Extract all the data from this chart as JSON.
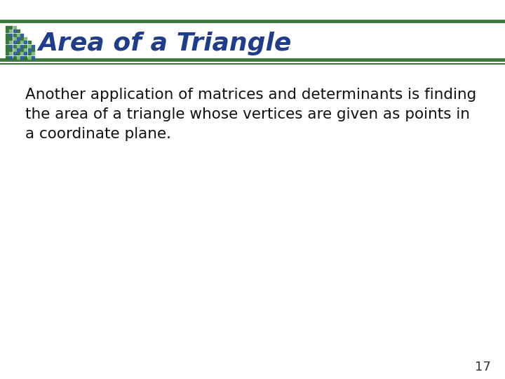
{
  "title": "Area of a Triangle",
  "title_color": "#1F3D8A",
  "title_fontsize": 26,
  "body_text_lines": [
    "Another application of matrices and determinants is finding",
    "the area of a triangle whose vertices are given as points in",
    "a coordinate plane."
  ],
  "body_fontsize": 15.5,
  "body_color": "#111111",
  "background_color": "#ffffff",
  "line_color_thick": "#3A7A3A",
  "line_color_thin": "#3A7A3A",
  "page_number": "17",
  "page_number_color": "#333333",
  "page_number_fontsize": 13,
  "icon_colors_dark": "#2E6B2E",
  "icon_colors_light": "#7AB87A",
  "icon_colors_blue": "#2255AA"
}
